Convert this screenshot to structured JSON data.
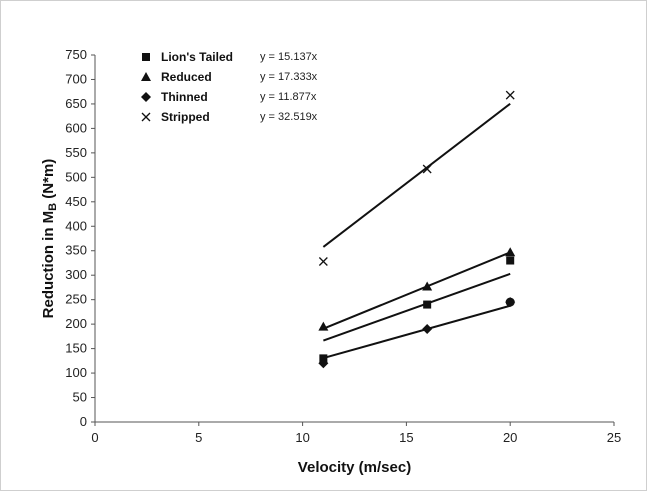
{
  "chart_data": {
    "type": "scatter",
    "title": "",
    "xlabel": "Velocity (m/sec)",
    "ylabel_main": "Reduction in M",
    "ylabel_sub": "B",
    "ylabel_tail": " (N*m)",
    "xlim": [
      0,
      25
    ],
    "ylim": [
      0,
      750
    ],
    "x_ticks": [
      0,
      5,
      10,
      15,
      20,
      25
    ],
    "y_ticks": [
      0,
      50,
      100,
      150,
      200,
      250,
      300,
      350,
      400,
      450,
      500,
      550,
      600,
      650,
      700,
      750
    ],
    "grid": false,
    "legend_position": "top-left",
    "series": [
      {
        "name": "Lion's Tailed",
        "marker": "square",
        "x": [
          11,
          16,
          20
        ],
        "y": [
          130,
          240,
          330
        ],
        "trend_slope": 15.137,
        "equation": "y = 15.137x"
      },
      {
        "name": "Reduced",
        "marker": "triangle",
        "x": [
          11,
          16,
          20
        ],
        "y": [
          195,
          277,
          347
        ],
        "trend_slope": 17.333,
        "equation": "y = 17.333x"
      },
      {
        "name": "Thinned",
        "marker": "diamond",
        "x": [
          11,
          16,
          20
        ],
        "y": [
          120,
          190,
          245
        ],
        "trend_slope": 11.877,
        "equation": "y = 11.877x"
      },
      {
        "name": "Stripped",
        "marker": "x",
        "x": [
          11,
          16,
          20
        ],
        "y": [
          328,
          517,
          668
        ],
        "trend_slope": 32.519,
        "equation": "y = 32.519x"
      }
    ]
  }
}
